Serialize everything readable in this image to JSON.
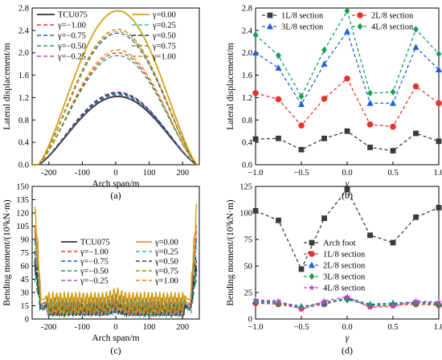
{
  "chart_data": [
    {
      "type": "line",
      "panel_label": "(a)",
      "xlabel": "Arch span/m",
      "ylabel": "Lateral displacement/m",
      "xlim": [
        -250,
        250
      ],
      "ylim": [
        0,
        2.8
      ],
      "xticks": [
        -200,
        -100,
        0,
        100,
        200
      ],
      "yticks": [
        0.0,
        0.4,
        0.8,
        1.2,
        1.6,
        2.0,
        2.4,
        2.8
      ],
      "ytick_labels": [
        "0.0",
        "0.4",
        "0.8",
        "1.2",
        "1.6",
        "2.0",
        "2.4",
        "2.8"
      ],
      "legend_position": "top",
      "x_support": [
        -233,
        245
      ],
      "series": [
        {
          "name": "TCU075",
          "peak": 1.22,
          "color": "#333333",
          "dash": "solid"
        },
        {
          "name": "γ=−1.00",
          "peak": 1.27,
          "color": "#e8332b",
          "dash": "dashed"
        },
        {
          "name": "γ=−0.75",
          "peak": 1.25,
          "color": "#1f5fd6",
          "dash": "dashed"
        },
        {
          "name": "γ=−0.50",
          "peak": 1.29,
          "color": "#1a9e5a",
          "dash": "dashed"
        },
        {
          "name": "γ=−0.25",
          "peak": 1.3,
          "color": "#c040c0",
          "dash": "dashed"
        },
        {
          "name": "γ=0.00",
          "peak": 2.75,
          "color": "#d4a017",
          "dash": "solid"
        },
        {
          "name": "γ=0.25",
          "peak": 1.27,
          "color": "#20c0c0",
          "dash": "dashed"
        },
        {
          "name": "γ=0.50",
          "peak": 1.28,
          "color": "#3a3a3a",
          "dash": "dashed"
        },
        {
          "name": "γ=0.75",
          "peak": 2.42,
          "color": "#9a8a10",
          "dash": "dashed"
        },
        {
          "name": "γ=1.00",
          "peak": 2.05,
          "color": "#e08a10",
          "dash": "dashed"
        }
      ],
      "extra_curves": [
        {
          "peak": 2.35,
          "color": "#1f5fd6",
          "dash": "dashed"
        },
        {
          "peak": 2.0,
          "color": "#e8332b",
          "dash": "dashed"
        },
        {
          "peak": 1.95,
          "color": "#1a9e5a",
          "dash": "dashed"
        },
        {
          "peak": 2.38,
          "color": "#d4a017",
          "dash": "dashed"
        }
      ]
    },
    {
      "type": "line",
      "panel_label": "(b)",
      "xlabel": "γ",
      "ylabel": "Lateral displacement/m",
      "xlim": [
        -1.0,
        1.0
      ],
      "ylim": [
        0,
        2.8
      ],
      "xticks": [
        -1.0,
        -0.5,
        0.0,
        0.5,
        1.0
      ],
      "xtick_labels": [
        "−1.0",
        "−0.5",
        "0.0",
        "0.5",
        "1.0"
      ],
      "yticks": [
        0.0,
        0.4,
        0.8,
        1.2,
        1.6,
        2.0,
        2.4,
        2.8
      ],
      "ytick_labels": [
        "0.0",
        "0.4",
        "0.8",
        "1.2",
        "1.6",
        "2.0",
        "2.4",
        "2.8"
      ],
      "legend_position": "top",
      "x": [
        -1.0,
        -0.75,
        -0.5,
        -0.25,
        0.0,
        0.25,
        0.5,
        0.75,
        1.0
      ],
      "series": [
        {
          "name": "1L/8 section",
          "color": "#3a3a3a",
          "marker": "square",
          "values": [
            0.46,
            0.47,
            0.27,
            0.47,
            0.6,
            0.31,
            0.25,
            0.56,
            0.42
          ]
        },
        {
          "name": "2L/8 section",
          "color": "#e8332b",
          "marker": "circle",
          "values": [
            1.28,
            1.17,
            0.7,
            1.18,
            1.54,
            0.72,
            0.68,
            1.4,
            1.1
          ]
        },
        {
          "name": "3L/8 section",
          "color": "#1f5fd6",
          "marker": "triangle",
          "values": [
            2.0,
            1.73,
            1.08,
            1.8,
            2.38,
            1.1,
            1.1,
            2.1,
            1.7
          ]
        },
        {
          "name": "4L/8 section",
          "color": "#1a9e5a",
          "marker": "diamond",
          "values": [
            2.32,
            1.95,
            1.22,
            2.05,
            2.75,
            1.28,
            1.3,
            2.42,
            1.98
          ]
        }
      ]
    },
    {
      "type": "line",
      "panel_label": "(c)",
      "xlabel": "Arch span/m",
      "ylabel": "Bending moment/(10³kN·m)",
      "xlim": [
        -250,
        250
      ],
      "ylim": [
        0,
        150
      ],
      "xticks": [
        -200,
        -100,
        0,
        100,
        200
      ],
      "yticks": [
        0,
        15,
        30,
        45,
        60,
        75,
        90,
        105,
        120,
        135,
        150
      ],
      "ytick_labels": [
        "0",
        "15",
        "30",
        "45",
        "60",
        "75",
        "90",
        "105",
        "120",
        "135",
        "150"
      ],
      "legend_position": "center",
      "series": [
        {
          "name": "TCU075",
          "color": "#333333",
          "dash": "solid",
          "end_peak": 60,
          "mid": 12
        },
        {
          "name": "γ=−1.00",
          "color": "#e8332b",
          "dash": "dashed",
          "end_peak": 105,
          "mid": 16
        },
        {
          "name": "γ=−0.75",
          "color": "#1f5fd6",
          "dash": "dashed",
          "end_peak": 95,
          "mid": 14
        },
        {
          "name": "γ=−0.50",
          "color": "#1a9e5a",
          "dash": "dashed",
          "end_peak": 50,
          "mid": 10
        },
        {
          "name": "γ=−0.25",
          "color": "#c040c0",
          "dash": "dashed",
          "end_peak": 95,
          "mid": 14
        },
        {
          "name": "γ=0.00",
          "color": "#d4a017",
          "dash": "solid",
          "end_peak": 125,
          "mid": 22
        },
        {
          "name": "γ=0.25",
          "color": "#20c0c0",
          "dash": "dashed",
          "end_peak": 80,
          "mid": 15
        },
        {
          "name": "γ=0.50",
          "color": "#3a3a3a",
          "dash": "dashed",
          "end_peak": 70,
          "mid": 12
        },
        {
          "name": "γ=0.75",
          "color": "#9a8a10",
          "dash": "dashed",
          "end_peak": 100,
          "mid": 18
        },
        {
          "name": "γ=1.00",
          "color": "#e08a10",
          "dash": "dashed",
          "end_peak": 110,
          "mid": 17
        }
      ]
    },
    {
      "type": "line",
      "panel_label": "(d)",
      "xlabel": "γ",
      "ylabel": "Bending moment/(10³kN·m)",
      "xlim": [
        -1.0,
        1.0
      ],
      "ylim": [
        0,
        125
      ],
      "xticks": [
        -1.0,
        -0.5,
        0.0,
        0.5,
        1.0
      ],
      "xtick_labels": [
        "−1.0",
        "−0.5",
        "0.0",
        "0.5",
        "1.0"
      ],
      "yticks": [
        0,
        25,
        50,
        75,
        100,
        125
      ],
      "ytick_labels": [
        "0",
        "25",
        "50",
        "75",
        "100",
        "125"
      ],
      "legend_position": "center",
      "x": [
        -1.0,
        -0.75,
        -0.5,
        -0.25,
        0.0,
        0.25,
        0.5,
        0.75,
        1.0
      ],
      "series": [
        {
          "name": "Arch foot",
          "color": "#3a3a3a",
          "marker": "square",
          "values": [
            102,
            93,
            47,
            95,
            122,
            79,
            72,
            96,
            105
          ]
        },
        {
          "name": "1L/8 section",
          "color": "#e8332b",
          "marker": "circle",
          "values": [
            15,
            14,
            10,
            14,
            19,
            12,
            13,
            14,
            13
          ]
        },
        {
          "name": "2L/8 section",
          "color": "#1f5fd6",
          "marker": "triangle",
          "values": [
            17,
            16,
            12,
            15,
            20,
            14,
            15,
            16,
            15
          ]
        },
        {
          "name": "3L/8 section",
          "color": "#1a9e5a",
          "marker": "diamond",
          "values": [
            16,
            15,
            11,
            16,
            18,
            13,
            14,
            15,
            14
          ]
        },
        {
          "name": "4L/8 section",
          "color": "#c040c0",
          "marker": "star",
          "values": [
            18,
            17,
            9,
            17,
            21,
            11,
            12,
            17,
            16
          ]
        }
      ]
    }
  ]
}
